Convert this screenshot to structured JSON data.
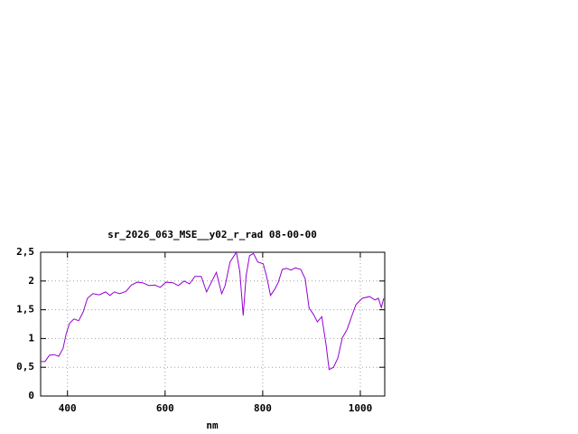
{
  "chart_data": {
    "type": "line",
    "title": "sr_2026_063_MSE__y02_r_rad 08-00-00",
    "x_label": "nm",
    "xlim": [
      345,
      1050
    ],
    "xticks": [
      400,
      600,
      800,
      1000
    ],
    "ylim": [
      0,
      2.5
    ],
    "yticks": [
      0,
      {
        "value": 0.5,
        "label": "0,5"
      },
      1,
      {
        "value": 1.5,
        "label": "1,5"
      },
      2,
      {
        "value": 2.5,
        "label": "2,5"
      }
    ],
    "grid": true,
    "series": [
      {
        "color": "#9400d3",
        "x": [
          345,
          354,
          363,
          373,
          382,
          391,
          397,
          404,
          413,
          423,
          432,
          441,
          452,
          465,
          478,
          487,
          496,
          507,
          520,
          531,
          543,
          554,
          567,
          579,
          590,
          602,
          616,
          627,
          639,
          650,
          661,
          674,
          685,
          696,
          705,
          716,
          723,
          733,
          746,
          753,
          760,
          766,
          773,
          781,
          790,
          801,
          808,
          816,
          825,
          832,
          840,
          849,
          858,
          867,
          878,
          887,
          895,
          904,
          912,
          921,
          930,
          936,
          945,
          954,
          963,
          973,
          982,
          991,
          1004,
          1019,
          1030,
          1037,
          1043,
          1048
        ],
        "values": [
          0.6,
          0.6,
          0.71,
          0.72,
          0.69,
          0.83,
          1.07,
          1.26,
          1.34,
          1.31,
          1.46,
          1.7,
          1.78,
          1.76,
          1.81,
          1.75,
          1.81,
          1.78,
          1.82,
          1.93,
          1.98,
          1.97,
          1.92,
          1.93,
          1.89,
          1.98,
          1.97,
          1.92,
          2.0,
          1.95,
          2.08,
          2.08,
          1.81,
          2.0,
          2.15,
          1.78,
          1.92,
          2.33,
          2.5,
          2.17,
          1.4,
          2.09,
          2.44,
          2.48,
          2.33,
          2.3,
          2.08,
          1.75,
          1.86,
          1.98,
          2.2,
          2.22,
          2.19,
          2.23,
          2.2,
          2.04,
          1.53,
          1.42,
          1.29,
          1.38,
          0.88,
          0.46,
          0.5,
          0.66,
          1.01,
          1.16,
          1.38,
          1.59,
          1.7,
          1.73,
          1.67,
          1.7,
          1.54,
          1.7
        ]
      }
    ]
  }
}
